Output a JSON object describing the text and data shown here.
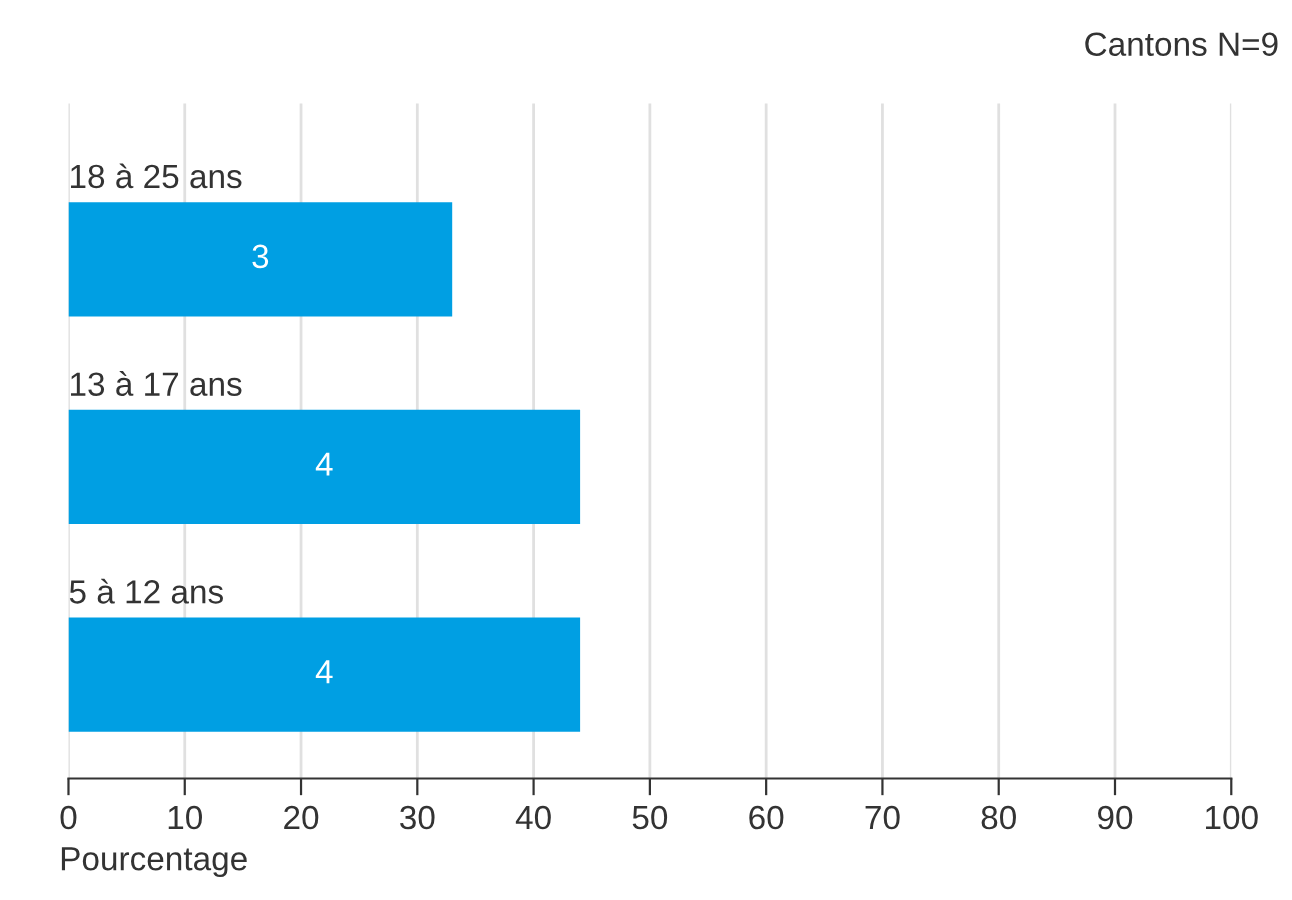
{
  "chart_data": {
    "type": "bar",
    "orientation": "horizontal",
    "categories": [
      "18 à 25 ans",
      "13 à 17 ans",
      "5 à 12 ans"
    ],
    "values": [
      33,
      44,
      44
    ],
    "color": "#009fe3",
    "xlim": [
      0,
      100
    ],
    "xticks": [
      0,
      10,
      20,
      30,
      40,
      50,
      60,
      70,
      80,
      90,
      100
    ],
    "xlabel": "Pourcentage",
    "annotations": [
      "Cantons N=9",
      "3",
      "4",
      "4"
    ],
    "grid": "x",
    "legend": false
  }
}
